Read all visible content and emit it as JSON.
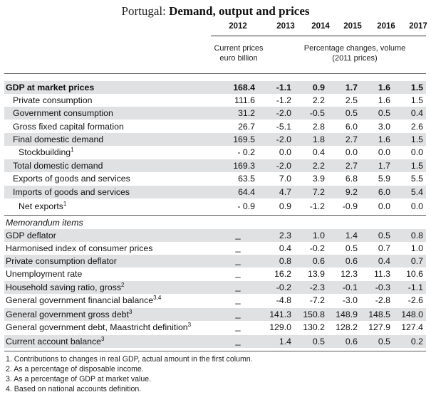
{
  "title": {
    "prefix": "Portugal: ",
    "main": "Demand, output and prices"
  },
  "years": [
    "2012",
    "2013",
    "2014",
    "2015",
    "2016",
    "2017"
  ],
  "col_heads": {
    "current": [
      "Current prices",
      "euro billion"
    ],
    "pct": [
      "Percentage changes, volume",
      "(2011 prices)"
    ]
  },
  "main_rows": [
    {
      "label": "GDP at market prices",
      "sup": "",
      "bold": true,
      "values": [
        "168.4",
        "-1.1",
        "0.9",
        "1.7",
        "1.6",
        "1.5"
      ]
    },
    {
      "label": "Private consumption",
      "sup": "",
      "bold": false,
      "values": [
        "111.6",
        "-1.2",
        "2.2",
        "2.5",
        "1.6",
        "1.5"
      ]
    },
    {
      "label": "Government consumption",
      "sup": "",
      "bold": false,
      "values": [
        "31.2",
        "-2.0",
        "-0.5",
        "0.5",
        "0.5",
        "0.4"
      ]
    },
    {
      "label": "Gross fixed capital formation",
      "sup": "",
      "bold": false,
      "values": [
        "26.7",
        "-5.1",
        "2.8",
        "6.0",
        "3.0",
        "2.6"
      ]
    },
    {
      "label": "Final domestic demand",
      "sup": "",
      "bold": false,
      "values": [
        "169.5",
        "-2.0",
        "1.8",
        "2.7",
        "1.6",
        "1.5"
      ]
    },
    {
      "label": "Stockbuilding",
      "sup": "1",
      "bold": false,
      "values": [
        "- 0.2",
        "0.0",
        "0.4",
        "0.0",
        "0.0",
        "0.0"
      ]
    },
    {
      "label": "Total domestic demand",
      "sup": "",
      "bold": false,
      "values": [
        "169.3",
        "-2.0",
        "2.2",
        "2.7",
        "1.7",
        "1.5"
      ]
    },
    {
      "label": "Exports of goods and services",
      "sup": "",
      "bold": false,
      "values": [
        "63.5",
        "7.0",
        "3.9",
        "6.8",
        "5.9",
        "5.5"
      ]
    },
    {
      "label": "Imports of goods and services",
      "sup": "",
      "bold": false,
      "values": [
        "64.4",
        "4.7",
        "7.2",
        "9.2",
        "6.0",
        "5.4"
      ]
    },
    {
      "label": "Net exports",
      "sup": "1",
      "bold": false,
      "values": [
        "- 0.9",
        "0.9",
        "-1.2",
        "-0.9",
        "0.0",
        "0.0"
      ]
    }
  ],
  "memo_title": "Memorandum items",
  "memo_rows": [
    {
      "label": "GDP deflator",
      "sup": "",
      "values": [
        "_",
        "2.3",
        "1.0",
        "1.4",
        "0.5",
        "0.8"
      ]
    },
    {
      "label": "Harmonised index of consumer prices",
      "sup": "",
      "values": [
        "_",
        "0.4",
        "-0.2",
        "0.5",
        "0.7",
        "1.0"
      ]
    },
    {
      "label": "Private consumption deflator",
      "sup": "",
      "values": [
        "_",
        "0.8",
        "0.6",
        "0.6",
        "0.4",
        "0.7"
      ]
    },
    {
      "label": "Unemployment rate",
      "sup": "",
      "values": [
        "_",
        "16.2",
        "13.9",
        "12.3",
        "11.3",
        "10.6"
      ]
    },
    {
      "label": "Household saving ratio, gross",
      "sup": "2",
      "values": [
        "_",
        "-0.2",
        "-2.3",
        "-0.1",
        "-0.3",
        "-1.1"
      ]
    },
    {
      "label": "General government financial balance",
      "sup": "3,4",
      "values": [
        "_",
        "-4.8",
        "-7.2",
        "-3.0",
        "-2.8",
        "-2.6"
      ]
    },
    {
      "label": "General government gross debt",
      "sup": "3",
      "values": [
        "_",
        "141.3",
        "150.8",
        "148.9",
        "148.5",
        "148.0"
      ]
    },
    {
      "label": "General government debt, Maastricht definition",
      "sup": "3",
      "values": [
        "_",
        "129.0",
        "130.2",
        "128.2",
        "127.9",
        "127.4"
      ]
    },
    {
      "label": "Current account balance",
      "sup": "3",
      "values": [
        "_",
        "1.4",
        "0.5",
        "0.6",
        "0.5",
        "0.2"
      ]
    }
  ],
  "notes": [
    "1.  Contributions to changes in real GDP, actual amount in the first column.",
    "2.  As a percentage of disposable income.",
    "3.  As a percentage of GDP at market value.",
    "4.  Based on national accounts definition."
  ]
}
